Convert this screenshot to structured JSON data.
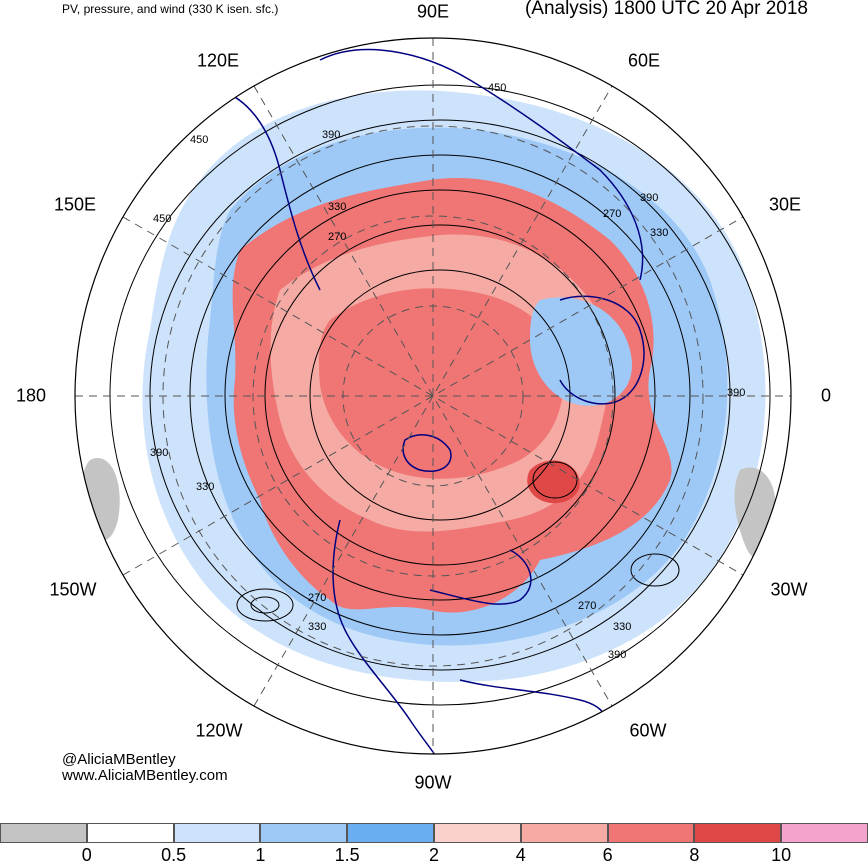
{
  "header": {
    "left_title": "PV, pressure, and wind (330 K isen. sfc.)",
    "right_title": "(Analysis) 1800 UTC 20 Apr 2018"
  },
  "longitude_labels": {
    "e90": "90E",
    "e60": "60E",
    "e30": "30E",
    "zero": "0",
    "w30": "30W",
    "w60": "60W",
    "w90": "90W",
    "w120": "120W",
    "w150": "150W",
    "lon180": "180",
    "e150": "150E",
    "e120": "120E"
  },
  "contour_labels": {
    "c450a": "450",
    "c450b": "450",
    "c450c": "450",
    "c390a": "390",
    "c390b": "390",
    "c390c": "390",
    "c390d": "390",
    "c390e": "390",
    "c330a": "330",
    "c330b": "330",
    "c330c": "330",
    "c330d": "330",
    "c330e": "330",
    "c270a": "270",
    "c270b": "270",
    "c270c": "270",
    "c270d": "270"
  },
  "credits": {
    "handle": "@AliciaMBentley",
    "website": "www.AliciaMBentley.com"
  },
  "colorbar": {
    "ticks": [
      "0",
      "0.5",
      "1",
      "1.5",
      "2",
      "4",
      "6",
      "8",
      "10"
    ],
    "colors": [
      "#c4c4c4",
      "#ffffff",
      "#cde3fb",
      "#9ec9f7",
      "#6aaef2",
      "#f9d2cd",
      "#f5aaa4",
      "#ef7674",
      "#e04848",
      "#f4a4cc"
    ]
  },
  "map_colors": {
    "ocean_background": "#ffffff",
    "pv_high": "#ef7674",
    "pv_mid": "#f5aaa4",
    "pv_low": "#9ec9f7",
    "coastline": "#000080"
  }
}
